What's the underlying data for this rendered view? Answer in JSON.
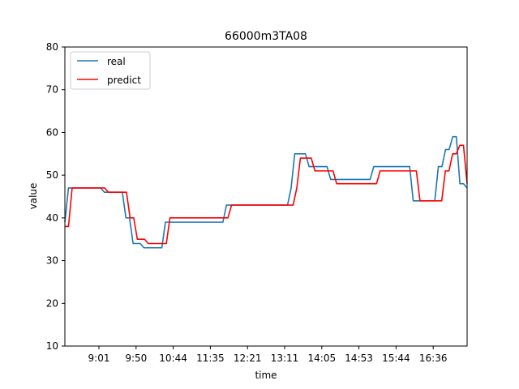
{
  "chart_data": {
    "type": "line",
    "title": "66000m3TA08",
    "xlabel": "time",
    "ylabel": "value",
    "ylim": [
      10,
      80
    ],
    "yticks": [
      10,
      20,
      30,
      40,
      50,
      60,
      70,
      80
    ],
    "xticks": [
      "9:01",
      "9:50",
      "10:44",
      "11:35",
      "12:21",
      "13:11",
      "14:05",
      "14:53",
      "15:44",
      "16:36"
    ],
    "legend_position": "top-left",
    "grid": false,
    "series": [
      {
        "name": "real",
        "color": "#1f77b4",
        "values": [
          39,
          47,
          47,
          47,
          47,
          47,
          47,
          47,
          47,
          47,
          47,
          46,
          46,
          46,
          46,
          46,
          46,
          40,
          40,
          34,
          34,
          34,
          33,
          33,
          33,
          33,
          33,
          33,
          39,
          39,
          39,
          39,
          39,
          39,
          39,
          39,
          39,
          39,
          39,
          39,
          39,
          39,
          39,
          39,
          39,
          43,
          43,
          43,
          43,
          43,
          43,
          43,
          43,
          43,
          43,
          43,
          43,
          43,
          43,
          43,
          43,
          43,
          43,
          47,
          55,
          55,
          55,
          55,
          52,
          52,
          52,
          52,
          52,
          52,
          49,
          49,
          49,
          49,
          49,
          49,
          49,
          49,
          49,
          49,
          49,
          49,
          52,
          52,
          52,
          52,
          52,
          52,
          52,
          52,
          52,
          52,
          52,
          44,
          44,
          44,
          44,
          44,
          44,
          44,
          52,
          52,
          56,
          56,
          59,
          59,
          48,
          48,
          47
        ]
      },
      {
        "name": "predict",
        "color": "#ff0000",
        "values": [
          38,
          38,
          47,
          47,
          47,
          47,
          47,
          47,
          47,
          47,
          47,
          47,
          46,
          46,
          46,
          46,
          46,
          46,
          40,
          40,
          35,
          35,
          35,
          34,
          34,
          34,
          34,
          34,
          34,
          40,
          40,
          40,
          40,
          40,
          40,
          40,
          40,
          40,
          40,
          40,
          40,
          40,
          40,
          40,
          40,
          40,
          43,
          43,
          43,
          43,
          43,
          43,
          43,
          43,
          43,
          43,
          43,
          43,
          43,
          43,
          43,
          43,
          43,
          43,
          47,
          54,
          54,
          54,
          54,
          51,
          51,
          51,
          51,
          51,
          51,
          48,
          48,
          48,
          48,
          48,
          48,
          48,
          48,
          48,
          48,
          48,
          48,
          51,
          51,
          51,
          51,
          51,
          51,
          51,
          51,
          51,
          51,
          51,
          44,
          44,
          44,
          44,
          44,
          44,
          44,
          51,
          51,
          55,
          55,
          57,
          57,
          48
        ]
      }
    ]
  }
}
